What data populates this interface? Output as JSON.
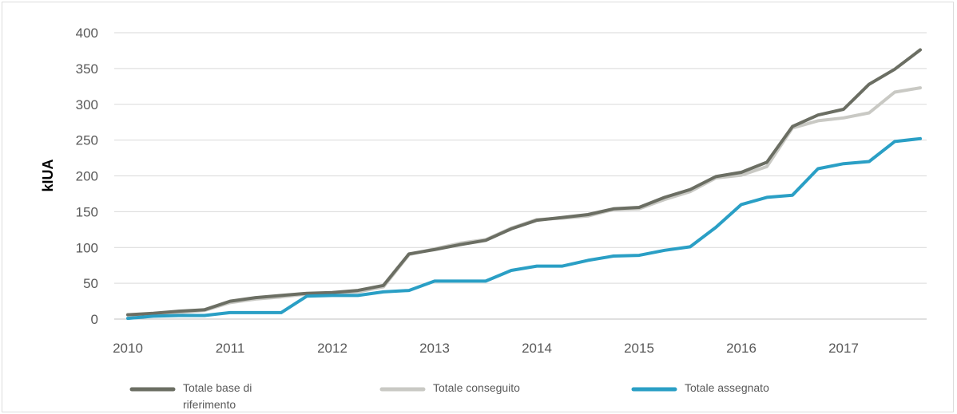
{
  "chart_data": {
    "type": "line",
    "title": "",
    "xlabel": "",
    "ylabel": "kIUA",
    "ylim": [
      0,
      400
    ],
    "yticks": [
      0,
      50,
      100,
      150,
      200,
      250,
      300,
      350,
      400
    ],
    "xlim": [
      2010,
      2017.8
    ],
    "xticks": [
      2010,
      2011,
      2012,
      2013,
      2014,
      2015,
      2016,
      2017
    ],
    "grid": "horizontal",
    "legend_position": "bottom",
    "series": [
      {
        "name": "Totale base di riferimento",
        "color": "#6b6e63",
        "points": [
          [
            2010.0,
            6
          ],
          [
            2010.25,
            8
          ],
          [
            2010.5,
            11
          ],
          [
            2010.75,
            13
          ],
          [
            2011.0,
            25
          ],
          [
            2011.25,
            30
          ],
          [
            2011.5,
            33
          ],
          [
            2011.75,
            36
          ],
          [
            2012.0,
            37
          ],
          [
            2012.25,
            40
          ],
          [
            2012.5,
            47
          ],
          [
            2012.75,
            91
          ],
          [
            2013.0,
            97
          ],
          [
            2013.25,
            104
          ],
          [
            2013.5,
            110
          ],
          [
            2013.75,
            126
          ],
          [
            2014.0,
            138
          ],
          [
            2014.25,
            142
          ],
          [
            2014.5,
            146
          ],
          [
            2014.75,
            154
          ],
          [
            2015.0,
            156
          ],
          [
            2015.25,
            170
          ],
          [
            2015.5,
            181
          ],
          [
            2015.75,
            199
          ],
          [
            2016.0,
            205
          ],
          [
            2016.25,
            219
          ],
          [
            2016.5,
            269
          ],
          [
            2016.75,
            285
          ],
          [
            2017.0,
            293
          ],
          [
            2017.25,
            328
          ],
          [
            2017.5,
            349
          ],
          [
            2017.75,
            376
          ]
        ]
      },
      {
        "name": "Totale conseguito",
        "color": "#c9c9c4",
        "points": [
          [
            2010.0,
            6
          ],
          [
            2010.25,
            7
          ],
          [
            2010.5,
            9
          ],
          [
            2010.75,
            12
          ],
          [
            2011.0,
            23
          ],
          [
            2011.25,
            28
          ],
          [
            2011.5,
            31
          ],
          [
            2011.75,
            35
          ],
          [
            2012.0,
            36
          ],
          [
            2012.25,
            38
          ],
          [
            2012.5,
            45
          ],
          [
            2012.75,
            90
          ],
          [
            2013.0,
            98
          ],
          [
            2013.25,
            106
          ],
          [
            2013.5,
            111
          ],
          [
            2013.75,
            127
          ],
          [
            2014.0,
            139
          ],
          [
            2014.25,
            141
          ],
          [
            2014.5,
            144
          ],
          [
            2014.75,
            153
          ],
          [
            2015.0,
            154
          ],
          [
            2015.25,
            167
          ],
          [
            2015.5,
            178
          ],
          [
            2015.75,
            197
          ],
          [
            2016.0,
            201
          ],
          [
            2016.25,
            213
          ],
          [
            2016.5,
            267
          ],
          [
            2016.75,
            277
          ],
          [
            2017.0,
            281
          ],
          [
            2017.25,
            288
          ],
          [
            2017.5,
            317
          ],
          [
            2017.75,
            323
          ]
        ]
      },
      {
        "name": "Totale assegnato",
        "color": "#2a9fc5",
        "points": [
          [
            2010.0,
            1
          ],
          [
            2010.25,
            4
          ],
          [
            2010.5,
            5
          ],
          [
            2010.75,
            5
          ],
          [
            2011.0,
            9
          ],
          [
            2011.25,
            9
          ],
          [
            2011.5,
            9
          ],
          [
            2011.75,
            32
          ],
          [
            2012.0,
            33
          ],
          [
            2012.25,
            33
          ],
          [
            2012.5,
            38
          ],
          [
            2012.75,
            40
          ],
          [
            2013.0,
            53
          ],
          [
            2013.25,
            53
          ],
          [
            2013.5,
            53
          ],
          [
            2013.75,
            68
          ],
          [
            2014.0,
            74
          ],
          [
            2014.25,
            74
          ],
          [
            2014.5,
            82
          ],
          [
            2014.75,
            88
          ],
          [
            2015.0,
            89
          ],
          [
            2015.25,
            96
          ],
          [
            2015.5,
            101
          ],
          [
            2015.75,
            128
          ],
          [
            2016.0,
            160
          ],
          [
            2016.25,
            170
          ],
          [
            2016.5,
            173
          ],
          [
            2016.75,
            210
          ],
          [
            2017.0,
            217
          ],
          [
            2017.25,
            220
          ],
          [
            2017.5,
            248
          ],
          [
            2017.75,
            252
          ]
        ]
      }
    ],
    "legend": [
      {
        "lines": [
          "Totale base di",
          "riferimento"
        ],
        "color": "#6b6e63"
      },
      {
        "lines": [
          "Totale conseguito"
        ],
        "color": "#c9c9c4"
      },
      {
        "lines": [
          "Totale assegnato"
        ],
        "color": "#2a9fc5"
      }
    ]
  }
}
